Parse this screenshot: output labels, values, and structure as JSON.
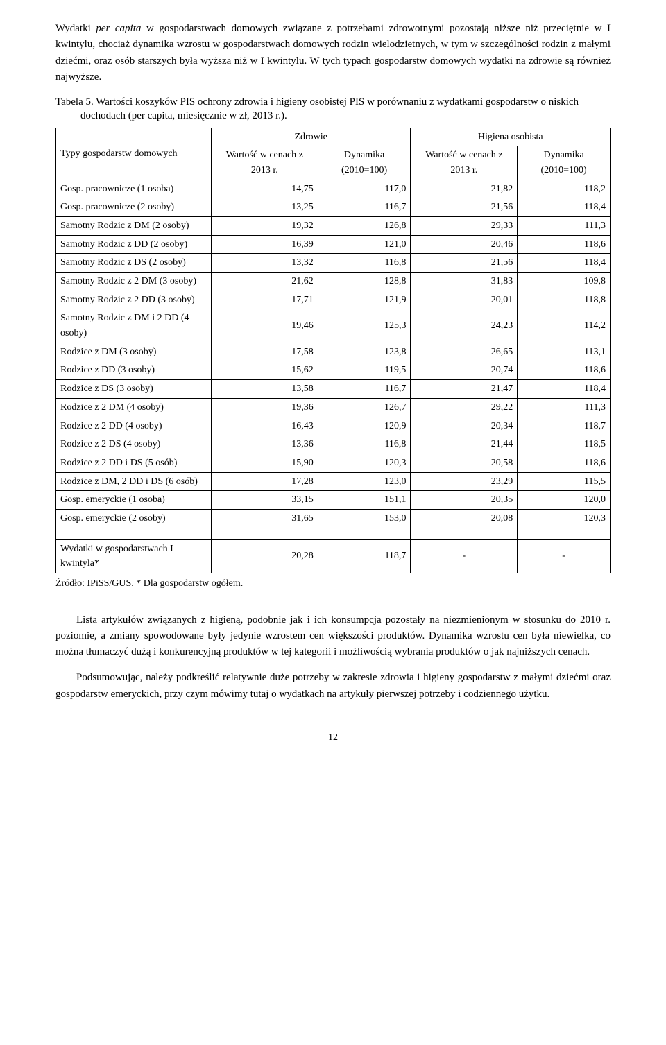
{
  "paragraphs": {
    "p1_pre": "Wydatki ",
    "p1_italic": "per capita",
    "p1_post": " w gospodarstwach domowych związane z potrzebami zdrowotnymi pozostają niższe niż przeciętnie w I kwintylu, chociaż dynamika wzrostu w gospodarstwach domowych rodzin wielodzietnych, w tym w szczególności rodzin z małymi dziećmi, oraz osób starszych była wyższa niż w I kwintylu. W tych typach gospodarstw domowych wydatki na zdrowie są również najwyższe.",
    "p2": "Lista artykułów związanych z higieną, podobnie jak i ich konsumpcja pozostały na niezmienionym w stosunku do 2010 r. poziomie, a zmiany spowodowane były jedynie wzrostem cen większości produktów. Dynamika wzrostu cen była niewielka, co można tłumaczyć dużą i konkurencyjną produktów w tej kategorii i możliwością wybrania produktów o jak najniższych cenach.",
    "p3": "Podsumowując, należy podkreślić relatywnie duże potrzeby w zakresie zdrowia i higieny gospodarstw z małymi dziećmi oraz gospodarstw emeryckich, przy czym mówimy tutaj o wydatkach na artykuły pierwszej potrzeby i codziennego użytku."
  },
  "table": {
    "caption": "Tabela 5. Wartości koszyków PIS ochrony zdrowia i higieny osobistej PIS w porównaniu z wydatkami gospodarstw o niskich dochodach (per capita, miesięcznie w zł, 2013 r.).",
    "header_row1": "Typy gospodarstw domowych",
    "header_zdrowie": "Zdrowie",
    "header_higiena": "Higiena osobista",
    "sub_wartosc": "Wartość w cenach z 2013 r.",
    "sub_dynamika": "Dynamika (2010=100)",
    "rows": [
      {
        "type": "Gosp. pracownicze (1 osoba)",
        "z_w": "14,75",
        "z_d": "117,0",
        "h_w": "21,82",
        "h_d": "118,2"
      },
      {
        "type": "Gosp. pracownicze (2 osoby)",
        "z_w": "13,25",
        "z_d": "116,7",
        "h_w": "21,56",
        "h_d": "118,4"
      },
      {
        "type": "Samotny Rodzic z DM (2 osoby)",
        "z_w": "19,32",
        "z_d": "126,8",
        "h_w": "29,33",
        "h_d": "111,3"
      },
      {
        "type": "Samotny Rodzic z DD (2 osoby)",
        "z_w": "16,39",
        "z_d": "121,0",
        "h_w": "20,46",
        "h_d": "118,6"
      },
      {
        "type": "Samotny Rodzic z DS (2 osoby)",
        "z_w": "13,32",
        "z_d": "116,8",
        "h_w": "21,56",
        "h_d": "118,4"
      },
      {
        "type": "Samotny Rodzic z 2 DM (3 osoby)",
        "z_w": "21,62",
        "z_d": "128,8",
        "h_w": "31,83",
        "h_d": "109,8"
      },
      {
        "type": "Samotny Rodzic z 2 DD (3 osoby)",
        "z_w": "17,71",
        "z_d": "121,9",
        "h_w": "20,01",
        "h_d": "118,8"
      },
      {
        "type": "Samotny Rodzic z DM i 2 DD (4 osoby)",
        "z_w": "19,46",
        "z_d": "125,3",
        "h_w": "24,23",
        "h_d": "114,2"
      },
      {
        "type": "Rodzice z DM (3 osoby)",
        "z_w": "17,58",
        "z_d": "123,8",
        "h_w": "26,65",
        "h_d": "113,1"
      },
      {
        "type": "Rodzice z DD (3 osoby)",
        "z_w": "15,62",
        "z_d": "119,5",
        "h_w": "20,74",
        "h_d": "118,6"
      },
      {
        "type": "Rodzice z DS (3 osoby)",
        "z_w": "13,58",
        "z_d": "116,7",
        "h_w": "21,47",
        "h_d": "118,4"
      },
      {
        "type": "Rodzice z 2 DM (4 osoby)",
        "z_w": "19,36",
        "z_d": "126,7",
        "h_w": "29,22",
        "h_d": "111,3"
      },
      {
        "type": "Rodzice z 2 DD (4 osoby)",
        "z_w": "16,43",
        "z_d": "120,9",
        "h_w": "20,34",
        "h_d": "118,7"
      },
      {
        "type": "Rodzice z 2 DS (4 osoby)",
        "z_w": "13,36",
        "z_d": "116,8",
        "h_w": "21,44",
        "h_d": "118,5"
      },
      {
        "type": "Rodzice z 2 DD i DS (5 osób)",
        "z_w": "15,90",
        "z_d": "120,3",
        "h_w": "20,58",
        "h_d": "118,6"
      },
      {
        "type": "Rodzice z DM, 2 DD i DS (6 osób)",
        "z_w": "17,28",
        "z_d": "123,0",
        "h_w": "23,29",
        "h_d": "115,5"
      },
      {
        "type": "Gosp. emeryckie (1 osoba)",
        "z_w": "33,15",
        "z_d": "151,1",
        "h_w": "20,35",
        "h_d": "120,0"
      },
      {
        "type": "Gosp. emeryckie (2 osoby)",
        "z_w": "31,65",
        "z_d": "153,0",
        "h_w": "20,08",
        "h_d": "120,3"
      }
    ],
    "footer_row": {
      "type": "Wydatki w gospodarstwach I kwintyla*",
      "z_w": "20,28",
      "z_d": "118,7",
      "h_w": "-",
      "h_d": "-"
    },
    "source": "Źródło: IPiSS/GUS. * Dla gospodarstw ogółem."
  },
  "page_number": "12"
}
